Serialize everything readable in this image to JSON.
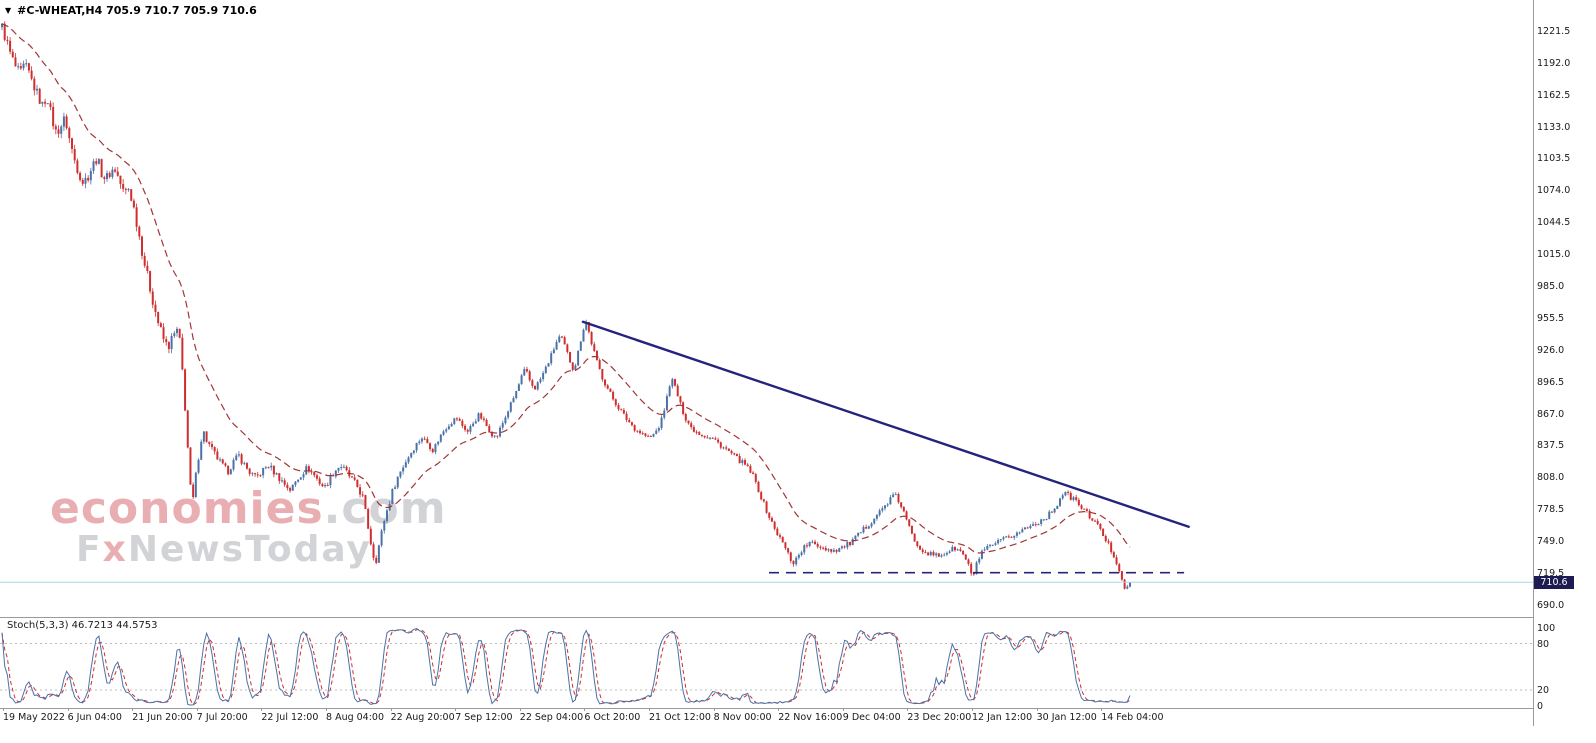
{
  "symbol_bar": {
    "dropdown_glyph": "▼",
    "text": "#C-WHEAT,H4 705.9 710.7 705.9 710.6"
  },
  "watermark": {
    "brand": "economies",
    "suffix": ".com",
    "tagline_f": "F",
    "tagline_x": "x",
    "tagline_rest": "NewsToday"
  },
  "price_badge": "710.6",
  "indicator_panel": {
    "label": "Stoch(5,3,3) 46.7213 44.5753",
    "axis": [
      "100",
      "80",
      "20",
      "0"
    ]
  },
  "colors": {
    "up_candle": "#4a72a8",
    "down_candle": "#cf2e2e",
    "ma_line": "#a03636",
    "trend_line": "#24247c",
    "support_line": "#24247c",
    "current_price_line": "#a9d5ea",
    "badge_bg": "#1c1c52",
    "badge_text": "#ffffff",
    "stoch_k": "#4a72a8",
    "stoch_d": "#cf2e2e",
    "level_line": "#bdbdbd",
    "separator": "#9a9a9a",
    "watermark_red": "#e9aeb2",
    "watermark_gray": "#d2d3d6"
  },
  "chart_data": {
    "type": "candlestick",
    "symbol": "#C-WHEAT",
    "timeframe": "H4",
    "last_bar_ohlc": {
      "open": 705.9,
      "high": 710.7,
      "low": 705.9,
      "close": 710.6
    },
    "y_axis_ticks": [
      "1221.5",
      "1192.0",
      "1162.5",
      "1133.0",
      "1103.5",
      "1074.0",
      "1044.5",
      "1015.0",
      "985.0",
      "955.5",
      "926.0",
      "896.5",
      "867.0",
      "837.5",
      "808.0",
      "778.5",
      "749.0",
      "719.5",
      "690.0"
    ],
    "ylim": [
      678.4,
      1250.2
    ],
    "x_axis_ticks": [
      "19 May 2022",
      "6 Jun 04:00",
      "21 Jun 20:00",
      "7 Jul 20:00",
      "22 Jul 12:00",
      "8 Aug 04:00",
      "22 Aug 20:00",
      "7 Sep 12:00",
      "22 Sep 04:00",
      "6 Oct 20:00",
      "21 Oct 12:00",
      "8 Nov 00:00",
      "22 Nov 16:00",
      "9 Dec 04:00",
      "23 Dec 20:00",
      "12 Jan 12:00",
      "30 Jan 12:00",
      "14 Feb 04:00"
    ],
    "candle_count": 420,
    "price_path": [
      [
        0.0,
        1225
      ],
      [
        0.004,
        1212
      ],
      [
        0.008,
        1198
      ],
      [
        0.012,
        1188
      ],
      [
        0.016,
        1181
      ],
      [
        0.02,
        1190
      ],
      [
        0.024,
        1182
      ],
      [
        0.028,
        1171
      ],
      [
        0.032,
        1161
      ],
      [
        0.036,
        1152
      ],
      [
        0.04,
        1162
      ],
      [
        0.044,
        1141
      ],
      [
        0.048,
        1127
      ],
      [
        0.052,
        1133
      ],
      [
        0.056,
        1141
      ],
      [
        0.06,
        1120
      ],
      [
        0.064,
        1103
      ],
      [
        0.068,
        1091
      ],
      [
        0.072,
        1081
      ],
      [
        0.076,
        1087
      ],
      [
        0.08,
        1096
      ],
      [
        0.084,
        1104
      ],
      [
        0.088,
        1091
      ],
      [
        0.092,
        1084
      ],
      [
        0.096,
        1091
      ],
      [
        0.1,
        1094
      ],
      [
        0.104,
        1083
      ],
      [
        0.108,
        1071
      ],
      [
        0.112,
        1076
      ],
      [
        0.116,
        1062
      ],
      [
        0.12,
        1041
      ],
      [
        0.125,
        1013
      ],
      [
        0.13,
        989
      ],
      [
        0.135,
        966
      ],
      [
        0.139,
        949
      ],
      [
        0.143,
        936
      ],
      [
        0.147,
        928
      ],
      [
        0.151,
        937
      ],
      [
        0.155,
        944
      ],
      [
        0.158,
        931
      ],
      [
        0.161,
        892
      ],
      [
        0.164,
        846
      ],
      [
        0.167,
        799
      ],
      [
        0.169,
        784
      ],
      [
        0.172,
        811
      ],
      [
        0.175,
        833
      ],
      [
        0.178,
        852
      ],
      [
        0.181,
        843
      ],
      [
        0.185,
        835
      ],
      [
        0.19,
        827
      ],
      [
        0.195,
        819
      ],
      [
        0.2,
        813
      ],
      [
        0.205,
        822
      ],
      [
        0.21,
        828
      ],
      [
        0.215,
        819
      ],
      [
        0.22,
        812
      ],
      [
        0.225,
        807
      ],
      [
        0.231,
        814
      ],
      [
        0.236,
        819
      ],
      [
        0.241,
        813
      ],
      [
        0.246,
        807
      ],
      [
        0.251,
        801
      ],
      [
        0.256,
        796
      ],
      [
        0.261,
        805
      ],
      [
        0.266,
        812
      ],
      [
        0.271,
        817
      ],
      [
        0.276,
        811
      ],
      [
        0.281,
        804
      ],
      [
        0.286,
        798
      ],
      [
        0.29,
        806
      ],
      [
        0.295,
        814
      ],
      [
        0.3,
        819
      ],
      [
        0.305,
        813
      ],
      [
        0.31,
        806
      ],
      [
        0.315,
        799
      ],
      [
        0.32,
        789
      ],
      [
        0.324,
        765
      ],
      [
        0.328,
        741
      ],
      [
        0.331,
        728
      ],
      [
        0.335,
        749
      ],
      [
        0.339,
        769
      ],
      [
        0.343,
        783
      ],
      [
        0.347,
        798
      ],
      [
        0.352,
        811
      ],
      [
        0.357,
        821
      ],
      [
        0.362,
        830
      ],
      [
        0.367,
        838
      ],
      [
        0.372,
        845
      ],
      [
        0.377,
        840
      ],
      [
        0.382,
        833
      ],
      [
        0.387,
        843
      ],
      [
        0.392,
        852
      ],
      [
        0.397,
        858
      ],
      [
        0.403,
        863
      ],
      [
        0.408,
        856
      ],
      [
        0.413,
        850
      ],
      [
        0.418,
        859
      ],
      [
        0.423,
        866
      ],
      [
        0.428,
        858
      ],
      [
        0.433,
        850
      ],
      [
        0.438,
        844
      ],
      [
        0.443,
        856
      ],
      [
        0.448,
        868
      ],
      [
        0.453,
        880
      ],
      [
        0.458,
        893
      ],
      [
        0.461,
        902
      ],
      [
        0.464,
        908
      ],
      [
        0.468,
        897
      ],
      [
        0.472,
        890
      ],
      [
        0.477,
        898
      ],
      [
        0.482,
        909
      ],
      [
        0.487,
        921
      ],
      [
        0.491,
        932
      ],
      [
        0.495,
        939
      ],
      [
        0.499,
        929
      ],
      [
        0.503,
        917
      ],
      [
        0.507,
        907
      ],
      [
        0.511,
        925
      ],
      [
        0.515,
        945
      ],
      [
        0.518,
        952
      ],
      [
        0.522,
        935
      ],
      [
        0.527,
        916
      ],
      [
        0.532,
        901
      ],
      [
        0.537,
        890
      ],
      [
        0.542,
        880
      ],
      [
        0.547,
        872
      ],
      [
        0.552,
        864
      ],
      [
        0.557,
        858
      ],
      [
        0.562,
        852
      ],
      [
        0.568,
        848
      ],
      [
        0.574,
        844
      ],
      [
        0.579,
        849
      ],
      [
        0.584,
        858
      ],
      [
        0.589,
        879
      ],
      [
        0.593,
        900
      ],
      [
        0.597,
        891
      ],
      [
        0.601,
        876
      ],
      [
        0.606,
        863
      ],
      [
        0.611,
        854
      ],
      [
        0.616,
        850
      ],
      [
        0.622,
        847
      ],
      [
        0.631,
        843
      ],
      [
        0.638,
        837
      ],
      [
        0.645,
        831
      ],
      [
        0.652,
        825
      ],
      [
        0.659,
        819
      ],
      [
        0.665,
        811
      ],
      [
        0.67,
        798
      ],
      [
        0.675,
        784
      ],
      [
        0.681,
        769
      ],
      [
        0.686,
        758
      ],
      [
        0.691,
        749
      ],
      [
        0.696,
        739
      ],
      [
        0.701,
        728
      ],
      [
        0.705,
        734
      ],
      [
        0.71,
        742
      ],
      [
        0.716,
        747
      ],
      [
        0.723,
        745
      ],
      [
        0.73,
        742
      ],
      [
        0.737,
        740
      ],
      [
        0.745,
        743
      ],
      [
        0.752,
        747
      ],
      [
        0.759,
        754
      ],
      [
        0.766,
        762
      ],
      [
        0.773,
        770
      ],
      [
        0.78,
        778
      ],
      [
        0.787,
        787
      ],
      [
        0.791,
        792
      ],
      [
        0.796,
        784
      ],
      [
        0.801,
        771
      ],
      [
        0.806,
        756
      ],
      [
        0.811,
        746
      ],
      [
        0.817,
        740
      ],
      [
        0.824,
        736
      ],
      [
        0.831,
        735
      ],
      [
        0.838,
        739
      ],
      [
        0.845,
        742
      ],
      [
        0.851,
        738
      ],
      [
        0.856,
        729
      ],
      [
        0.86,
        714
      ],
      [
        0.864,
        728
      ],
      [
        0.869,
        738
      ],
      [
        0.875,
        743
      ],
      [
        0.882,
        747
      ],
      [
        0.89,
        751
      ],
      [
        0.898,
        755
      ],
      [
        0.906,
        760
      ],
      [
        0.914,
        764
      ],
      [
        0.921,
        768
      ],
      [
        0.929,
        774
      ],
      [
        0.936,
        784
      ],
      [
        0.941,
        794
      ],
      [
        0.945,
        791
      ],
      [
        0.951,
        787
      ],
      [
        0.957,
        780
      ],
      [
        0.963,
        773
      ],
      [
        0.969,
        767
      ],
      [
        0.974,
        758
      ],
      [
        0.979,
        749
      ],
      [
        0.984,
        739
      ],
      [
        0.989,
        727
      ],
      [
        0.993,
        714
      ],
      [
        0.996,
        701
      ],
      [
        1.0,
        709
      ]
    ],
    "moving_average": {
      "period": 24,
      "style": "dashed"
    },
    "trendline": {
      "t1": 0.515,
      "p1": 952,
      "t2": 1.052,
      "p2": 762
    },
    "support_dashed_line": {
      "level": 719.5,
      "t1": 0.68,
      "t2": 1.048
    },
    "current_price_line": {
      "level": 710.6
    },
    "stochastic": {
      "k_period": 5,
      "smooth": 3,
      "d_period": 3,
      "k": 46.7213,
      "d": 44.5753,
      "levels": [
        80,
        20
      ],
      "range": [
        0,
        100
      ],
      "legend": "Stoch(5,3,3)"
    }
  }
}
